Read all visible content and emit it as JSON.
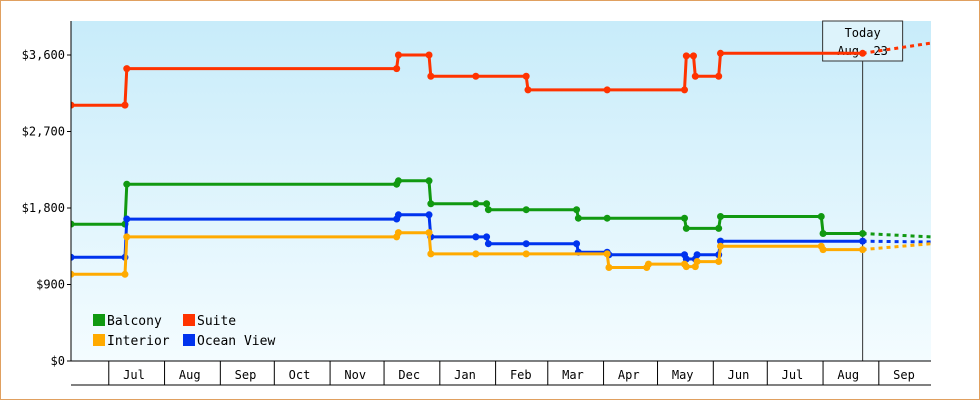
{
  "chart_data": {
    "type": "line",
    "title": "",
    "xlabel": "",
    "ylabel": "",
    "ylim": [
      0,
      4000
    ],
    "xlim": [
      "2023-06-10",
      "2024-09-30"
    ],
    "step": true,
    "grid": false,
    "legend_position": "bottom-left",
    "background_gradient": [
      "#c8ecfa",
      "#f4fcff"
    ],
    "y_ticks": [
      {
        "value": 0,
        "label": "$0"
      },
      {
        "value": 900,
        "label": "$900"
      },
      {
        "value": 1800,
        "label": "$1,800"
      },
      {
        "value": 2700,
        "label": "$2,700"
      },
      {
        "value": 3600,
        "label": "$3,600"
      }
    ],
    "x_ticks": [
      {
        "value": "2023-07-15",
        "label": "Jul"
      },
      {
        "value": "2023-08-15",
        "label": "Aug"
      },
      {
        "value": "2023-09-15",
        "label": "Sep"
      },
      {
        "value": "2023-10-15",
        "label": "Oct"
      },
      {
        "value": "2023-11-15",
        "label": "Nov"
      },
      {
        "value": "2023-12-15",
        "label": "Dec"
      },
      {
        "value": "2024-01-15",
        "label": "Jan"
      },
      {
        "value": "2024-02-15",
        "label": "Feb"
      },
      {
        "value": "2024-03-15",
        "label": "Mar"
      },
      {
        "value": "2024-04-15",
        "label": "Apr"
      },
      {
        "value": "2024-05-15",
        "label": "May"
      },
      {
        "value": "2024-06-15",
        "label": "Jun"
      },
      {
        "value": "2024-07-15",
        "label": "Jul"
      },
      {
        "value": "2024-08-15",
        "label": "Aug"
      },
      {
        "value": "2024-09-15",
        "label": "Sep"
      }
    ],
    "month_boundaries": [
      "2023-07-01",
      "2023-08-01",
      "2023-09-01",
      "2023-10-01",
      "2023-11-01",
      "2023-12-01",
      "2024-01-01",
      "2024-02-01",
      "2024-03-01",
      "2024-04-01",
      "2024-05-01",
      "2024-06-01",
      "2024-07-01",
      "2024-08-01",
      "2024-09-01"
    ],
    "today": {
      "date": "2024-08-23",
      "line1": "Today",
      "line2": "Aug. 23"
    },
    "series": [
      {
        "name": "Suite",
        "color": "#ff3300",
        "points": [
          {
            "x": "2023-06-10",
            "y": 3010
          },
          {
            "x": "2023-07-10",
            "y": 3010
          },
          {
            "x": "2023-07-11",
            "y": 3440
          },
          {
            "x": "2023-12-08",
            "y": 3440
          },
          {
            "x": "2023-12-09",
            "y": 3600
          },
          {
            "x": "2023-12-26",
            "y": 3600
          },
          {
            "x": "2023-12-27",
            "y": 3350
          },
          {
            "x": "2024-01-21",
            "y": 3350
          },
          {
            "x": "2024-02-18",
            "y": 3350
          },
          {
            "x": "2024-02-19",
            "y": 3190
          },
          {
            "x": "2024-04-03",
            "y": 3190
          },
          {
            "x": "2024-05-16",
            "y": 3190
          },
          {
            "x": "2024-05-17",
            "y": 3590
          },
          {
            "x": "2024-05-21",
            "y": 3590
          },
          {
            "x": "2024-05-22",
            "y": 3350
          },
          {
            "x": "2024-06-04",
            "y": 3350
          },
          {
            "x": "2024-06-05",
            "y": 3620
          },
          {
            "x": "2024-08-23",
            "y": 3620
          }
        ],
        "forecast": [
          {
            "x": "2024-08-23",
            "y": 3620
          },
          {
            "x": "2024-09-30",
            "y": 3740
          }
        ]
      },
      {
        "name": "Balcony",
        "color": "#119911",
        "points": [
          {
            "x": "2023-06-10",
            "y": 1610
          },
          {
            "x": "2023-07-10",
            "y": 1610
          },
          {
            "x": "2023-07-11",
            "y": 2080
          },
          {
            "x": "2023-12-08",
            "y": 2080
          },
          {
            "x": "2023-12-09",
            "y": 2120
          },
          {
            "x": "2023-12-26",
            "y": 2120
          },
          {
            "x": "2023-12-27",
            "y": 1850
          },
          {
            "x": "2024-01-21",
            "y": 1850
          },
          {
            "x": "2024-01-27",
            "y": 1850
          },
          {
            "x": "2024-01-28",
            "y": 1780
          },
          {
            "x": "2024-02-18",
            "y": 1780
          },
          {
            "x": "2024-03-17",
            "y": 1780
          },
          {
            "x": "2024-03-18",
            "y": 1680
          },
          {
            "x": "2024-04-03",
            "y": 1680
          },
          {
            "x": "2024-05-16",
            "y": 1680
          },
          {
            "x": "2024-05-17",
            "y": 1560
          },
          {
            "x": "2024-06-04",
            "y": 1560
          },
          {
            "x": "2024-06-05",
            "y": 1700
          },
          {
            "x": "2024-07-31",
            "y": 1700
          },
          {
            "x": "2024-08-01",
            "y": 1500
          },
          {
            "x": "2024-08-23",
            "y": 1500
          }
        ],
        "forecast": [
          {
            "x": "2024-08-23",
            "y": 1500
          },
          {
            "x": "2024-09-30",
            "y": 1460
          }
        ]
      },
      {
        "name": "Ocean View",
        "color": "#0033ee",
        "points": [
          {
            "x": "2023-06-10",
            "y": 1220
          },
          {
            "x": "2023-07-10",
            "y": 1220
          },
          {
            "x": "2023-07-11",
            "y": 1670
          },
          {
            "x": "2023-12-08",
            "y": 1670
          },
          {
            "x": "2023-12-09",
            "y": 1720
          },
          {
            "x": "2023-12-26",
            "y": 1720
          },
          {
            "x": "2023-12-27",
            "y": 1460
          },
          {
            "x": "2024-01-21",
            "y": 1460
          },
          {
            "x": "2024-01-27",
            "y": 1460
          },
          {
            "x": "2024-01-28",
            "y": 1380
          },
          {
            "x": "2024-02-18",
            "y": 1380
          },
          {
            "x": "2024-03-17",
            "y": 1380
          },
          {
            "x": "2024-03-18",
            "y": 1280
          },
          {
            "x": "2024-04-03",
            "y": 1280
          },
          {
            "x": "2024-04-04",
            "y": 1250
          },
          {
            "x": "2024-05-16",
            "y": 1250
          },
          {
            "x": "2024-05-17",
            "y": 1200
          },
          {
            "x": "2024-05-22",
            "y": 1200
          },
          {
            "x": "2024-05-23",
            "y": 1250
          },
          {
            "x": "2024-06-04",
            "y": 1250
          },
          {
            "x": "2024-06-05",
            "y": 1410
          },
          {
            "x": "2024-08-23",
            "y": 1410
          }
        ],
        "forecast": [
          {
            "x": "2024-08-23",
            "y": 1410
          },
          {
            "x": "2024-09-30",
            "y": 1400
          }
        ]
      },
      {
        "name": "Interior",
        "color": "#ffaa00",
        "points": [
          {
            "x": "2023-06-10",
            "y": 1020
          },
          {
            "x": "2023-07-10",
            "y": 1020
          },
          {
            "x": "2023-07-11",
            "y": 1460
          },
          {
            "x": "2023-12-08",
            "y": 1460
          },
          {
            "x": "2023-12-09",
            "y": 1510
          },
          {
            "x": "2023-12-26",
            "y": 1510
          },
          {
            "x": "2023-12-27",
            "y": 1260
          },
          {
            "x": "2024-01-21",
            "y": 1260
          },
          {
            "x": "2024-02-18",
            "y": 1260
          },
          {
            "x": "2024-04-03",
            "y": 1260
          },
          {
            "x": "2024-04-04",
            "y": 1100
          },
          {
            "x": "2024-04-25",
            "y": 1100
          },
          {
            "x": "2024-04-26",
            "y": 1140
          },
          {
            "x": "2024-05-16",
            "y": 1140
          },
          {
            "x": "2024-05-17",
            "y": 1110
          },
          {
            "x": "2024-05-22",
            "y": 1110
          },
          {
            "x": "2024-05-23",
            "y": 1170
          },
          {
            "x": "2024-06-04",
            "y": 1170
          },
          {
            "x": "2024-06-05",
            "y": 1350
          },
          {
            "x": "2024-07-31",
            "y": 1350
          },
          {
            "x": "2024-08-01",
            "y": 1310
          },
          {
            "x": "2024-08-23",
            "y": 1310
          }
        ],
        "forecast": [
          {
            "x": "2024-08-23",
            "y": 1310
          },
          {
            "x": "2024-09-30",
            "y": 1380
          }
        ]
      }
    ],
    "legend_order": [
      "Balcony",
      "Suite",
      "Interior",
      "Ocean View"
    ]
  }
}
